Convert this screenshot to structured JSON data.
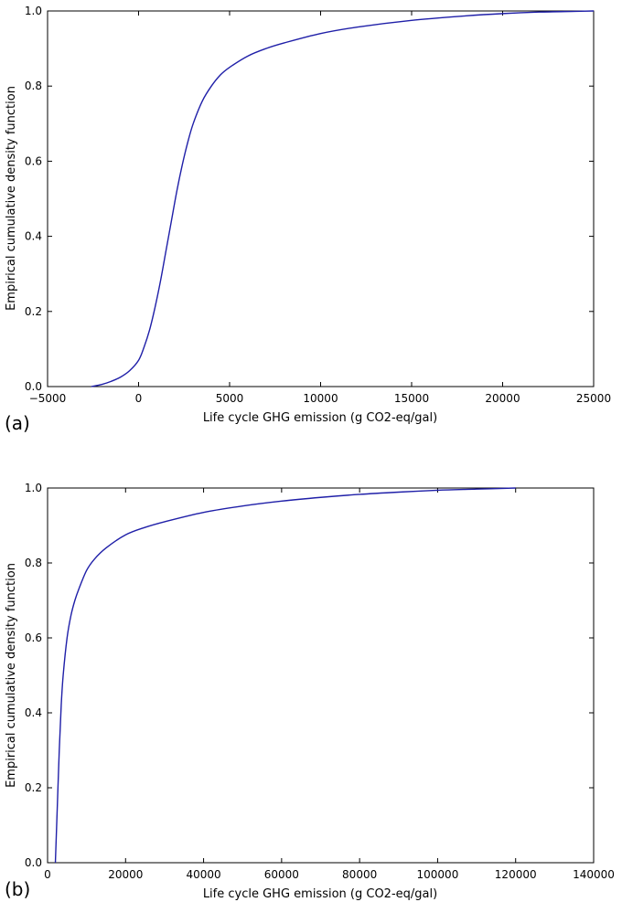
{
  "chart_data": [
    {
      "type": "line",
      "panel_label": "(a)",
      "xlabel": "Life cycle GHG emission (g CO2-eq/gal)",
      "ylabel": "Empirical cumulative density function",
      "xlim": [
        -5000,
        25000
      ],
      "ylim": [
        0.0,
        1.0
      ],
      "x_ticks": [
        -5000,
        0,
        5000,
        10000,
        15000,
        20000,
        25000
      ],
      "y_ticks": [
        0.0,
        0.2,
        0.4,
        0.6,
        0.8,
        1.0
      ],
      "x_tick_labels": [
        "−5000",
        "0",
        "5000",
        "10000",
        "15000",
        "20000",
        "25000"
      ],
      "y_tick_labels": [
        "0.0",
        "0.2",
        "0.4",
        "0.6",
        "0.8",
        "1.0"
      ],
      "grid": false,
      "series": [
        {
          "color": "#1f1fa8",
          "x": [
            -2600,
            -2000,
            -1500,
            -1000,
            -500,
            0,
            300,
            600,
            900,
            1200,
            1500,
            1800,
            2100,
            2400,
            2700,
            3000,
            3500,
            4000,
            4500,
            5000,
            6000,
            7000,
            8000,
            10000,
            12000,
            15000,
            18000,
            20000,
            22000,
            24000,
            25000
          ],
          "y": [
            0.0,
            0.006,
            0.014,
            0.025,
            0.042,
            0.07,
            0.105,
            0.15,
            0.21,
            0.28,
            0.36,
            0.44,
            0.52,
            0.59,
            0.65,
            0.7,
            0.76,
            0.8,
            0.83,
            0.85,
            0.88,
            0.9,
            0.915,
            0.94,
            0.957,
            0.975,
            0.987,
            0.993,
            0.997,
            0.999,
            1.0
          ]
        }
      ]
    },
    {
      "type": "line",
      "panel_label": "(b)",
      "xlabel": "Life cycle GHG emission (g CO2-eq/gal)",
      "ylabel": "Empirical cumulative density function",
      "xlim": [
        0,
        140000
      ],
      "ylim": [
        0.0,
        1.0
      ],
      "x_ticks": [
        0,
        20000,
        40000,
        60000,
        80000,
        100000,
        120000,
        140000
      ],
      "y_ticks": [
        0.0,
        0.2,
        0.4,
        0.6,
        0.8,
        1.0
      ],
      "x_tick_labels": [
        "0",
        "20000",
        "40000",
        "60000",
        "80000",
        "100000",
        "120000",
        "140000"
      ],
      "y_tick_labels": [
        "0.0",
        "0.2",
        "0.4",
        "0.6",
        "0.8",
        "1.0"
      ],
      "grid": false,
      "series": [
        {
          "color": "#1f1fa8",
          "x": [
            2000,
            2500,
            3000,
            3500,
            4000,
            5000,
            6000,
            7000,
            8000,
            10000,
            12000,
            15000,
            20000,
            25000,
            30000,
            40000,
            50000,
            60000,
            70000,
            80000,
            90000,
            100000,
            110000,
            120000
          ],
          "y": [
            0.0,
            0.15,
            0.3,
            0.42,
            0.5,
            0.6,
            0.66,
            0.7,
            0.73,
            0.78,
            0.81,
            0.84,
            0.875,
            0.895,
            0.91,
            0.935,
            0.952,
            0.965,
            0.975,
            0.983,
            0.989,
            0.994,
            0.997,
            1.0
          ]
        }
      ]
    }
  ]
}
